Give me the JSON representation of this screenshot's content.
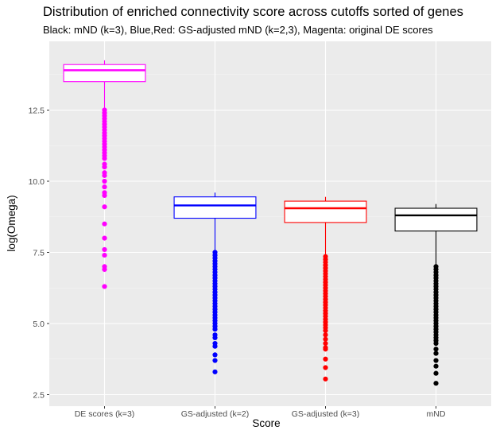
{
  "chart_data": {
    "type": "box",
    "title": "Distribution of enriched connectivity score across cutoffs sorted of genes",
    "subtitle": "Black: mND (k=3), Blue,Red: GS-adjusted mND (k=2,3), Magenta: original DE scores",
    "xlabel": "Score",
    "ylabel": "log(Omega)",
    "categories": [
      "DE scores (k=3)",
      "GS-adjusted (k=2)",
      "GS-adjusted (k=3)",
      "mND"
    ],
    "ylim": [
      2.25,
      14.5
    ],
    "yticks": [
      2.5,
      5.0,
      7.5,
      10.0,
      12.5
    ],
    "ytick_labels": [
      "2.5",
      "5.0",
      "7.5",
      "10.0",
      "12.5"
    ],
    "grid": true,
    "series": [
      {
        "color": "#ff00ff",
        "whisker_low": 12.55,
        "q1": 13.5,
        "median": 13.9,
        "q3": 14.1,
        "whisker_high": 14.25,
        "outliers": [
          12.5,
          12.4,
          12.3,
          12.2,
          12.1,
          12.0,
          11.9,
          11.8,
          11.7,
          11.6,
          11.5,
          11.4,
          11.3,
          11.2,
          11.1,
          11.0,
          10.9,
          10.8,
          10.6,
          10.5,
          10.3,
          10.2,
          10.0,
          9.8,
          9.6,
          9.5,
          9.1,
          8.5,
          8.0,
          7.6,
          7.4,
          7.0,
          6.9,
          6.3
        ]
      },
      {
        "color": "#0000ff",
        "whisker_low": 7.55,
        "q1": 8.7,
        "median": 9.15,
        "q3": 9.45,
        "whisker_high": 9.6,
        "outliers": [
          7.5,
          7.4,
          7.3,
          7.2,
          7.1,
          7.0,
          6.9,
          6.8,
          6.7,
          6.6,
          6.5,
          6.4,
          6.3,
          6.2,
          6.1,
          6.0,
          5.9,
          5.8,
          5.7,
          5.6,
          5.5,
          5.4,
          5.3,
          5.2,
          5.1,
          5.0,
          4.9,
          4.8,
          4.6,
          4.5,
          4.3,
          4.2,
          3.9,
          3.7,
          3.3
        ]
      },
      {
        "color": "#ff0000",
        "whisker_low": 7.4,
        "q1": 8.55,
        "median": 9.05,
        "q3": 9.3,
        "whisker_high": 9.45,
        "outliers": [
          7.35,
          7.25,
          7.15,
          7.05,
          6.95,
          6.85,
          6.75,
          6.65,
          6.55,
          6.45,
          6.35,
          6.25,
          6.15,
          6.05,
          5.95,
          5.85,
          5.75,
          5.65,
          5.55,
          5.45,
          5.35,
          5.25,
          5.15,
          5.05,
          4.95,
          4.85,
          4.75,
          4.6,
          4.45,
          4.3,
          4.15,
          4.1,
          3.75,
          3.45,
          3.05
        ]
      },
      {
        "color": "#000000",
        "whisker_low": 7.05,
        "q1": 8.25,
        "median": 8.8,
        "q3": 9.05,
        "whisker_high": 9.2,
        "outliers": [
          7.0,
          6.9,
          6.8,
          6.7,
          6.6,
          6.5,
          6.4,
          6.3,
          6.2,
          6.1,
          6.0,
          5.9,
          5.8,
          5.7,
          5.6,
          5.5,
          5.4,
          5.3,
          5.2,
          5.1,
          5.0,
          4.9,
          4.8,
          4.7,
          4.6,
          4.5,
          4.4,
          4.3,
          4.1,
          3.95,
          3.7,
          3.5,
          3.25,
          2.9
        ]
      }
    ]
  }
}
